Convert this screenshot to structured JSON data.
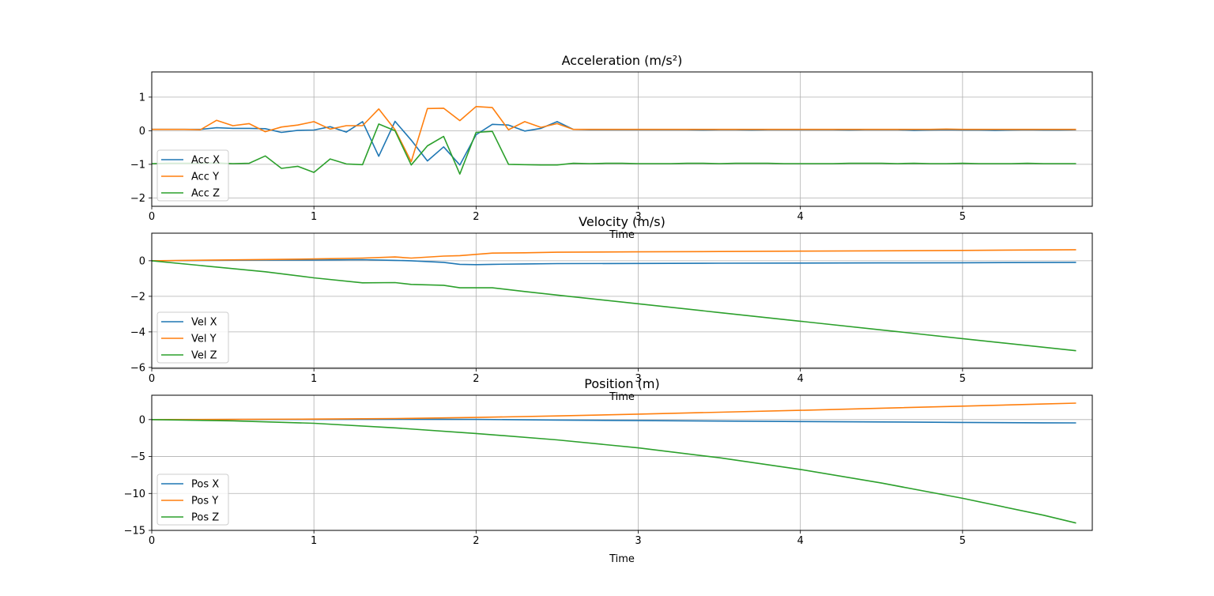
{
  "colors": {
    "series_1": "#1f77b4",
    "series_2": "#ff7f0e",
    "series_3": "#2ca02c",
    "grid": "#b0b0b0"
  },
  "chart_data": [
    {
      "type": "line",
      "title": "Acceleration (m/s²)",
      "xlabel": "Time",
      "ylabel": "",
      "xlim": [
        0,
        5.8
      ],
      "ylim": [
        -2.25,
        1.75
      ],
      "xticks": [
        0,
        1,
        2,
        3,
        4,
        5
      ],
      "yticks": [
        -2,
        -1,
        0,
        1
      ],
      "xtick_labels": [
        "0",
        "1",
        "2",
        "3",
        "4",
        "5"
      ],
      "ytick_labels": [
        "−2",
        "−1",
        "0",
        "1"
      ],
      "grid": true,
      "legend_position": "lower-left",
      "x": [
        0,
        0.1,
        0.2,
        0.3,
        0.4,
        0.5,
        0.6,
        0.7,
        0.8,
        0.9,
        1.0,
        1.1,
        1.2,
        1.3,
        1.4,
        1.5,
        1.6,
        1.7,
        1.8,
        1.9,
        2.0,
        2.1,
        2.2,
        2.3,
        2.4,
        2.5,
        2.6,
        2.7,
        2.8,
        2.9,
        3.0,
        3.1,
        3.2,
        3.3,
        3.4,
        3.5,
        3.6,
        3.7,
        3.8,
        3.9,
        4.0,
        4.1,
        4.2,
        4.3,
        4.4,
        4.5,
        4.6,
        4.7,
        4.8,
        4.9,
        5.0,
        5.1,
        5.2,
        5.3,
        5.4,
        5.5,
        5.6,
        5.7
      ],
      "series": [
        {
          "name": "Acc X",
          "values": [
            0.04,
            0.04,
            0.04,
            0.04,
            0.09,
            0.07,
            0.07,
            0.06,
            -0.05,
            0.01,
            0.02,
            0.12,
            -0.04,
            0.27,
            -0.76,
            0.28,
            -0.28,
            -0.9,
            -0.48,
            -1.02,
            -0.12,
            0.19,
            0.17,
            -0.01,
            0.07,
            0.27,
            0.04,
            0.03,
            0.03,
            0.03,
            0.03,
            0.03,
            0.03,
            0.03,
            0.02,
            0.03,
            0.03,
            0.02,
            0.03,
            0.03,
            0.03,
            0.03,
            0.03,
            0.02,
            0.03,
            0.03,
            0.03,
            0.01,
            0.02,
            0.03,
            0.02,
            0.02,
            0.01,
            0.02,
            0.03,
            0.02,
            0.02,
            0.03
          ]
        },
        {
          "name": "Acc Y",
          "values": [
            0.04,
            0.04,
            0.04,
            0.03,
            0.31,
            0.15,
            0.21,
            -0.03,
            0.11,
            0.17,
            0.27,
            0.05,
            0.15,
            0.15,
            0.65,
            0.03,
            -0.92,
            0.66,
            0.67,
            0.3,
            0.72,
            0.69,
            0.03,
            0.27,
            0.1,
            0.21,
            0.04,
            0.04,
            0.04,
            0.04,
            0.04,
            0.04,
            0.04,
            0.04,
            0.04,
            0.04,
            0.04,
            0.04,
            0.04,
            0.04,
            0.04,
            0.04,
            0.04,
            0.04,
            0.04,
            0.04,
            0.04,
            0.04,
            0.04,
            0.05,
            0.04,
            0.04,
            0.04,
            0.04,
            0.04,
            0.04,
            0.04,
            0.04
          ]
        },
        {
          "name": "Acc Z",
          "values": [
            -0.98,
            -0.97,
            -0.97,
            -0.97,
            -0.96,
            -0.98,
            -0.97,
            -0.75,
            -1.12,
            -1.06,
            -1.24,
            -0.84,
            -0.99,
            -1.01,
            0.2,
            0.0,
            -1.02,
            -0.45,
            -0.17,
            -1.29,
            -0.05,
            -0.02,
            -1.0,
            -1.01,
            -1.02,
            -1.02,
            -0.97,
            -0.98,
            -0.97,
            -0.97,
            -0.98,
            -0.98,
            -0.98,
            -0.97,
            -0.97,
            -0.98,
            -0.97,
            -0.97,
            -0.97,
            -0.98,
            -0.98,
            -0.98,
            -0.98,
            -0.97,
            -0.97,
            -0.97,
            -0.98,
            -0.97,
            -0.98,
            -0.98,
            -0.97,
            -0.98,
            -0.98,
            -0.98,
            -0.97,
            -0.98,
            -0.98,
            -0.98
          ]
        }
      ]
    },
    {
      "type": "line",
      "title": "Velocity (m/s)",
      "xlabel": "Time",
      "ylabel": "",
      "xlim": [
        0,
        5.8
      ],
      "ylim": [
        -6.05,
        1.55
      ],
      "xticks": [
        0,
        1,
        2,
        3,
        4,
        5
      ],
      "yticks": [
        -6,
        -4,
        -2,
        0
      ],
      "xtick_labels": [
        "0",
        "1",
        "2",
        "3",
        "4",
        "5"
      ],
      "ytick_labels": [
        "−6",
        "−4",
        "−2",
        "0"
      ],
      "grid": true,
      "legend_position": "lower-left",
      "x": [
        0,
        0.7,
        1.0,
        1.3,
        1.5,
        1.6,
        1.8,
        1.9,
        2.0,
        2.1,
        2.3,
        2.5,
        3.0,
        3.5,
        4.0,
        4.5,
        5.0,
        5.7
      ],
      "series": [
        {
          "name": "Vel X",
          "values": [
            0,
            0.04,
            0.04,
            0.06,
            0.02,
            0.0,
            -0.09,
            -0.2,
            -0.22,
            -0.2,
            -0.18,
            -0.16,
            -0.15,
            -0.14,
            -0.13,
            -0.12,
            -0.11,
            -0.09
          ]
        },
        {
          "name": "Vel Y",
          "values": [
            0,
            0.07,
            0.1,
            0.15,
            0.21,
            0.15,
            0.26,
            0.29,
            0.36,
            0.43,
            0.45,
            0.48,
            0.5,
            0.52,
            0.54,
            0.56,
            0.58,
            0.62
          ]
        },
        {
          "name": "Vel Z",
          "values": [
            0,
            -0.62,
            -0.96,
            -1.24,
            -1.23,
            -1.33,
            -1.38,
            -1.52,
            -1.52,
            -1.52,
            -1.73,
            -1.93,
            -2.42,
            -2.91,
            -3.4,
            -3.89,
            -4.38,
            -5.06
          ]
        }
      ]
    },
    {
      "type": "line",
      "title": "Position (m)",
      "xlabel": "Time",
      "ylabel": "",
      "xlim": [
        0,
        5.8
      ],
      "ylim": [
        -15.0,
        3.3
      ],
      "xticks": [
        0,
        1,
        2,
        3,
        4,
        5
      ],
      "yticks": [
        -15,
        -10,
        -5,
        0
      ],
      "xtick_labels": [
        "0",
        "1",
        "2",
        "3",
        "4",
        "5"
      ],
      "ytick_labels": [
        "−15",
        "−10",
        "−5",
        "0"
      ],
      "grid": true,
      "legend_position": "lower-left",
      "x": [
        0,
        0.5,
        1.0,
        1.5,
        2.0,
        2.5,
        3.0,
        3.5,
        4.0,
        4.5,
        5.0,
        5.5,
        5.7
      ],
      "series": [
        {
          "name": "Pos X",
          "values": [
            0,
            0.01,
            0.03,
            0.05,
            0.02,
            -0.06,
            -0.13,
            -0.2,
            -0.26,
            -0.32,
            -0.38,
            -0.43,
            -0.45
          ]
        },
        {
          "name": "Pos Y",
          "values": [
            0,
            0.02,
            0.07,
            0.14,
            0.29,
            0.5,
            0.74,
            1.0,
            1.26,
            1.54,
            1.82,
            2.11,
            2.23
          ]
        },
        {
          "name": "Pos Z",
          "values": [
            0,
            -0.17,
            -0.5,
            -1.12,
            -1.88,
            -2.75,
            -3.83,
            -5.17,
            -6.75,
            -8.59,
            -10.65,
            -12.95,
            -14.0
          ]
        }
      ]
    }
  ]
}
